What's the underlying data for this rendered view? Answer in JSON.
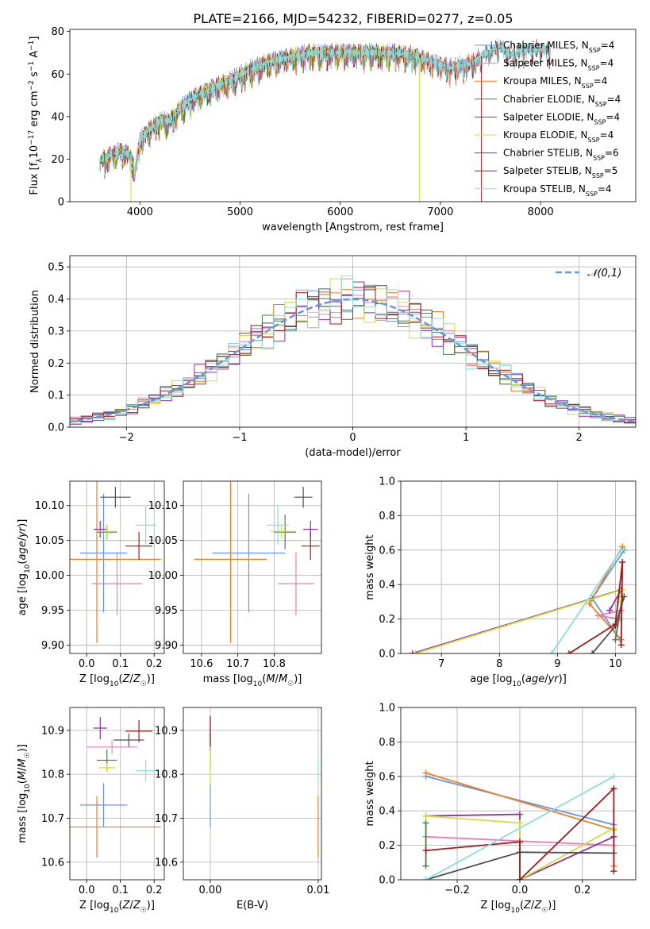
{
  "figure": {
    "title": "PLATE=2166, MJD=54232, FIBERID=0277, z=0.05"
  },
  "series_colors": [
    "#6495ed",
    "#e87fb8",
    "#ee7f22",
    "#4b7d4b",
    "#8e2ea8",
    "#cfe03b",
    "#505050",
    "#a31b1b",
    "#88dede"
  ],
  "chart_data": [
    {
      "id": "spectrum",
      "type": "line",
      "xlabel": "wavelength [Angstrom, rest frame]",
      "ylabel": "Flux [f_λ 10^-17 erg cm^-2 s^-1 A^-1]",
      "xlim": [
        3300,
        8950
      ],
      "ylim": [
        0,
        81
      ],
      "xticks": [
        4000,
        5000,
        6000,
        7000,
        8000
      ],
      "yticks": [
        0,
        20,
        40,
        60,
        80
      ],
      "legend_position": "right",
      "legend": [
        {
          "name": "Chabrier MILES",
          "nssp": "4"
        },
        {
          "name": "Salpeter MILES",
          "nssp": "4"
        },
        {
          "name": "Kroupa MILES",
          "nssp": "4"
        },
        {
          "name": "Chabrier ELODIE",
          "nssp": "4"
        },
        {
          "name": "Salpeter ELODIE",
          "nssp": "4"
        },
        {
          "name": "Kroupa ELODIE",
          "nssp": "4"
        },
        {
          "name": "Chabrier STELIB",
          "nssp": "6"
        },
        {
          "name": "Salpeter STELIB",
          "nssp": "5"
        },
        {
          "name": "Kroupa STELIB",
          "nssp": "4"
        }
      ],
      "continuum": [
        [
          3600,
          19
        ],
        [
          3700,
          22
        ],
        [
          3800,
          24
        ],
        [
          3900,
          22
        ],
        [
          3950,
          14
        ],
        [
          4000,
          29
        ],
        [
          4100,
          34
        ],
        [
          4200,
          38
        ],
        [
          4300,
          38
        ],
        [
          4400,
          44
        ],
        [
          4500,
          48
        ],
        [
          4700,
          53
        ],
        [
          4900,
          57
        ],
        [
          5100,
          62
        ],
        [
          5300,
          66
        ],
        [
          5500,
          68
        ],
        [
          5700,
          70
        ],
        [
          5900,
          70
        ],
        [
          6100,
          70
        ],
        [
          6300,
          70
        ],
        [
          6500,
          70
        ],
        [
          6700,
          69
        ],
        [
          6900,
          66
        ],
        [
          7100,
          63
        ],
        [
          7300,
          65
        ],
        [
          7500,
          71
        ],
        [
          7600,
          73
        ],
        [
          7700,
          69
        ],
        [
          7800,
          71
        ],
        [
          8000,
          72
        ],
        [
          8100,
          71
        ]
      ],
      "spectrum_end": {
        "MILES": 7400,
        "ELODIE": 6800,
        "STELIB": 8100
      },
      "dropouts": [
        3910,
        6790,
        7410
      ]
    },
    {
      "id": "residuals",
      "type": "histogram",
      "xlabel": "(data-model)/error",
      "ylabel": "Normed distribution",
      "xlim": [
        -2.5,
        2.5
      ],
      "ylim": [
        0,
        0.535
      ],
      "xticks": [
        -2,
        -1,
        0,
        1,
        2
      ],
      "yticks": [
        0,
        0.1,
        0.2,
        0.3,
        0.4,
        0.5
      ],
      "grid": true,
      "bin_width": 0.1,
      "reference_curve": "N(0,1)",
      "legend_label": "𝒩(0,1)",
      "legend_position": "top-right"
    },
    {
      "id": "age-vs-Z",
      "type": "scatter",
      "xlabel": "Z [log10(Z/Z☉)]",
      "ylabel": "age [log10(age/yr)]",
      "xlim": [
        -0.05,
        0.23
      ],
      "ylim": [
        9.888,
        10.135
      ],
      "xticks": [
        0.0,
        0.1,
        0.2
      ],
      "yticks": [
        9.9,
        9.95,
        10.0,
        10.05,
        10.1
      ],
      "grid": true,
      "points": [
        {
          "x": 0.05,
          "y": 10.032,
          "xerr": 0.07,
          "yerr": 0.085
        },
        {
          "x": 0.09,
          "y": 9.988,
          "xerr": 0.075,
          "yerr": 0.045
        },
        {
          "x": 0.03,
          "y": 10.023,
          "xerr": 0.19,
          "yerr": 0.12
        },
        {
          "x": 0.06,
          "y": 10.062,
          "xerr": 0.03,
          "yerr": 0.01
        },
        {
          "x": 0.04,
          "y": 10.066,
          "xerr": 0.02,
          "yerr": 0.012
        },
        {
          "x": 0.06,
          "y": 10.063,
          "xerr": 0.03,
          "yerr": 0.01
        },
        {
          "x": 0.085,
          "y": 10.112,
          "xerr": 0.045,
          "yerr": 0.015
        },
        {
          "x": 0.155,
          "y": 10.042,
          "xerr": 0.04,
          "yerr": 0.02
        },
        {
          "x": 0.175,
          "y": 10.072,
          "xerr": 0.03,
          "yerr": 0.028
        }
      ]
    },
    {
      "id": "age-vs-mass",
      "type": "scatter",
      "xlabel": "mass [log10(M/M☉)]",
      "ylabel": "",
      "xlim": [
        10.55,
        10.93
      ],
      "ylim": [
        9.888,
        10.135
      ],
      "xticks": [
        10.6,
        10.7,
        10.8
      ],
      "yticks": [
        9.9,
        9.95,
        10.0,
        10.05,
        10.1
      ],
      "grid": true,
      "points": [
        {
          "x": 10.73,
          "y": 10.032,
          "xerr": 0.1,
          "yerr": 0.085
        },
        {
          "x": 10.86,
          "y": 9.988,
          "xerr": 0.05,
          "yerr": 0.045
        },
        {
          "x": 10.68,
          "y": 10.023,
          "xerr": 0.1,
          "yerr": 0.12
        },
        {
          "x": 10.83,
          "y": 10.062,
          "xerr": 0.03,
          "yerr": 0.025
        },
        {
          "x": 10.9,
          "y": 10.066,
          "xerr": 0.02,
          "yerr": 0.012
        },
        {
          "x": 10.82,
          "y": 10.063,
          "xerr": 0.03,
          "yerr": 0.01
        },
        {
          "x": 10.88,
          "y": 10.112,
          "xerr": 0.025,
          "yerr": 0.015
        },
        {
          "x": 10.9,
          "y": 10.042,
          "xerr": 0.025,
          "yerr": 0.02
        },
        {
          "x": 10.81,
          "y": 10.072,
          "xerr": 0.03,
          "yerr": 0.028
        }
      ]
    },
    {
      "id": "weight-vs-age",
      "type": "line",
      "xlabel": "age [log10(age/yr)]",
      "ylabel": "mass weight",
      "xlim": [
        6.3,
        10.35
      ],
      "ylim": [
        0,
        1
      ],
      "xticks": [
        7,
        8,
        9,
        10
      ],
      "yticks": [
        0,
        0.2,
        0.4,
        0.6,
        0.8,
        1.0
      ],
      "grid": true,
      "series": [
        {
          "points": [
            [
              10.15,
              0.6
            ],
            [
              9.6,
              0.32
            ],
            [
              10.08,
              0.08
            ]
          ]
        },
        {
          "points": [
            [
              10.1,
              0.25
            ],
            [
              9.7,
              0.22
            ],
            [
              10.08,
              0.2
            ]
          ]
        },
        {
          "points": [
            [
              10.12,
              0.62
            ],
            [
              9.55,
              0.29
            ],
            [
              10.1,
              0.08
            ]
          ]
        },
        {
          "points": [
            [
              10.0,
              0.08
            ],
            [
              10.12,
              0.33
            ]
          ]
        },
        {
          "points": [
            [
              6.5,
              0.0
            ],
            [
              10.1,
              0.37
            ],
            [
              9.9,
              0.25
            ]
          ]
        },
        {
          "points": [
            [
              6.55,
              0.0
            ],
            [
              10.12,
              0.37
            ],
            [
              10.05,
              0.3
            ]
          ]
        },
        {
          "points": [
            [
              9.6,
              0.0
            ],
            [
              10.0,
              0.16
            ],
            [
              10.15,
              0.33
            ]
          ]
        },
        {
          "points": [
            [
              9.2,
              0.0
            ],
            [
              10.0,
              0.17
            ],
            [
              10.12,
              0.53
            ],
            [
              10.1,
              0.05
            ]
          ]
        },
        {
          "points": [
            [
              8.9,
              0.0
            ],
            [
              10.1,
              0.6
            ]
          ]
        }
      ]
    },
    {
      "id": "mass-vs-Z",
      "type": "scatter",
      "xlabel": "Z [log10(Z/Z☉)]",
      "ylabel": "mass [log10(M/M☉)]",
      "xlim": [
        -0.05,
        0.23
      ],
      "ylim": [
        10.56,
        10.952
      ],
      "xticks": [
        0.0,
        0.1,
        0.2
      ],
      "yticks": [
        10.6,
        10.7,
        10.8,
        10.9
      ],
      "grid": true,
      "points": [
        {
          "x": 0.05,
          "y": 10.73,
          "xerr": 0.07,
          "yerr": 0.05
        },
        {
          "x": 0.075,
          "y": 10.862,
          "xerr": 0.075,
          "yerr": 0.015
        },
        {
          "x": 0.03,
          "y": 10.68,
          "xerr": 0.19,
          "yerr": 0.07
        },
        {
          "x": 0.06,
          "y": 10.832,
          "xerr": 0.03,
          "yerr": 0.025
        },
        {
          "x": 0.04,
          "y": 10.905,
          "xerr": 0.02,
          "yerr": 0.025
        },
        {
          "x": 0.06,
          "y": 10.815,
          "xerr": 0.025,
          "yerr": 0.01
        },
        {
          "x": 0.125,
          "y": 10.878,
          "xerr": 0.045,
          "yerr": 0.015
        },
        {
          "x": 0.155,
          "y": 10.898,
          "xerr": 0.04,
          "yerr": 0.025
        },
        {
          "x": 0.175,
          "y": 10.808,
          "xerr": 0.03,
          "yerr": 0.025
        }
      ]
    },
    {
      "id": "mass-vs-ebv",
      "type": "scatter",
      "xlabel": "E(B-V)",
      "ylabel": "",
      "xlim": [
        -0.0025,
        0.0103
      ],
      "ylim": [
        10.56,
        10.952
      ],
      "xticks": [
        0.0,
        0.01
      ],
      "yticks": [
        10.6,
        10.7,
        10.8,
        10.9
      ],
      "grid": true,
      "points": [
        {
          "x": 0.0,
          "y": 10.73,
          "xerr": 0.0,
          "yerr": 0.05
        },
        {
          "x": 0.0,
          "y": 10.862,
          "xerr": 0.0,
          "yerr": 0.015
        },
        {
          "x": 0.01,
          "y": 10.68,
          "xerr": 0.0,
          "yerr": 0.07
        },
        {
          "x": 0.0,
          "y": 10.832,
          "xerr": 0.0,
          "yerr": 0.025
        },
        {
          "x": 0.0,
          "y": 10.905,
          "xerr": 0.0,
          "yerr": 0.025
        },
        {
          "x": 0.0,
          "y": 10.815,
          "xerr": 0.0,
          "yerr": 0.04
        },
        {
          "x": 0.0,
          "y": 10.878,
          "xerr": 0.0,
          "yerr": 0.015
        },
        {
          "x": 0.0,
          "y": 10.898,
          "xerr": 0.0,
          "yerr": 0.035
        },
        {
          "x": 0.01,
          "y": 10.808,
          "xerr": 0.0,
          "yerr": 0.025
        }
      ]
    },
    {
      "id": "weight-vs-Z",
      "type": "line",
      "xlabel": "Z [log10(Z/Z☉)]",
      "ylabel": "mass weight",
      "xlim": [
        -0.38,
        0.37
      ],
      "ylim": [
        0,
        1
      ],
      "xticks": [
        -0.2,
        0.0,
        0.2
      ],
      "yticks": [
        0,
        0.2,
        0.4,
        0.6,
        0.8,
        1.0
      ],
      "grid": true,
      "series": [
        {
          "points": [
            [
              -0.3,
              0.6
            ],
            [
              0.3,
              0.32
            ]
          ]
        },
        {
          "points": [
            [
              -0.3,
              0.25
            ],
            [
              0.3,
              0.2
            ]
          ]
        },
        {
          "points": [
            [
              -0.3,
              0.62
            ],
            [
              0.3,
              0.29
            ],
            [
              0.3,
              0.08
            ]
          ]
        },
        {
          "points": [
            [
              -0.3,
              0.08
            ],
            [
              -0.3,
              0.33
            ]
          ]
        },
        {
          "points": [
            [
              -0.3,
              0.37
            ],
            [
              0.0,
              0.38
            ],
            [
              0.0,
              0.0
            ],
            [
              0.3,
              0.25
            ]
          ]
        },
        {
          "points": [
            [
              -0.3,
              0.37
            ],
            [
              0.0,
              0.33
            ],
            [
              0.0,
              0.0
            ],
            [
              0.3,
              0.3
            ]
          ]
        },
        {
          "points": [
            [
              -0.3,
              0.0
            ],
            [
              0.0,
              0.16
            ],
            [
              0.3,
              0.155
            ]
          ]
        },
        {
          "points": [
            [
              -0.3,
              0.17
            ],
            [
              0.0,
              0.22
            ],
            [
              0.0,
              0.0
            ],
            [
              0.3,
              0.53
            ],
            [
              0.3,
              0.05
            ]
          ]
        },
        {
          "points": [
            [
              -0.3,
              0.0
            ],
            [
              0.3,
              0.6
            ]
          ]
        }
      ]
    }
  ]
}
